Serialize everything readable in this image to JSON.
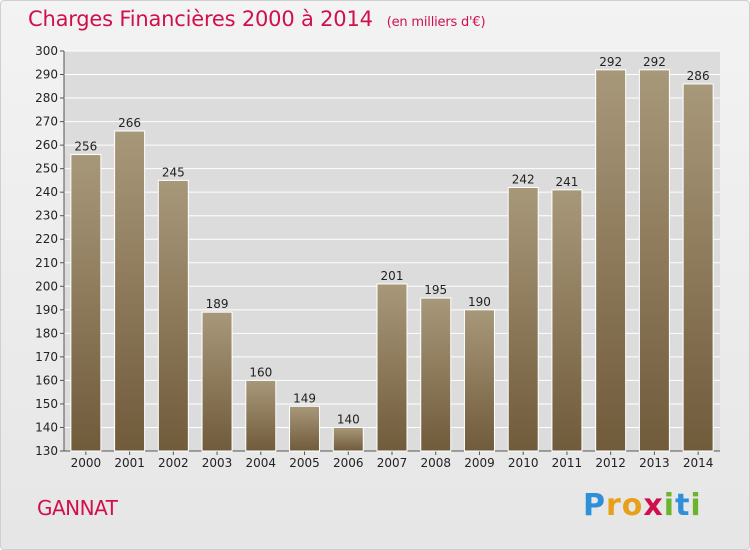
{
  "header": {
    "title": "Charges Financières 2000 à 2014",
    "subtitle": "(en milliers d'€)"
  },
  "footer": {
    "city": "GANNAT",
    "logo_letters": [
      "P",
      "r",
      "o",
      "x",
      "i",
      "t",
      "i"
    ]
  },
  "colors": {
    "title": "#d0104c",
    "bar_top": "#a8987a",
    "bar_bottom": "#705b3b",
    "plot_background": "#dcdcdc",
    "grid": "#ffffff"
  },
  "chart_data": {
    "type": "bar",
    "title": "Charges Financières 2000 à 2014",
    "subtitle": "(en milliers d'€)",
    "xlabel": "",
    "ylabel": "",
    "categories": [
      "2000",
      "2001",
      "2002",
      "2003",
      "2004",
      "2005",
      "2006",
      "2007",
      "2008",
      "2009",
      "2010",
      "2011",
      "2012",
      "2013",
      "2014"
    ],
    "values": [
      256,
      266,
      245,
      189,
      160,
      149,
      140,
      201,
      195,
      190,
      242,
      241,
      292,
      292,
      286
    ],
    "ylim": [
      130,
      300
    ],
    "yticks": [
      130,
      140,
      150,
      160,
      170,
      180,
      190,
      200,
      210,
      220,
      230,
      240,
      250,
      260,
      270,
      280,
      290,
      300
    ],
    "grid": true,
    "data_labels": true
  }
}
